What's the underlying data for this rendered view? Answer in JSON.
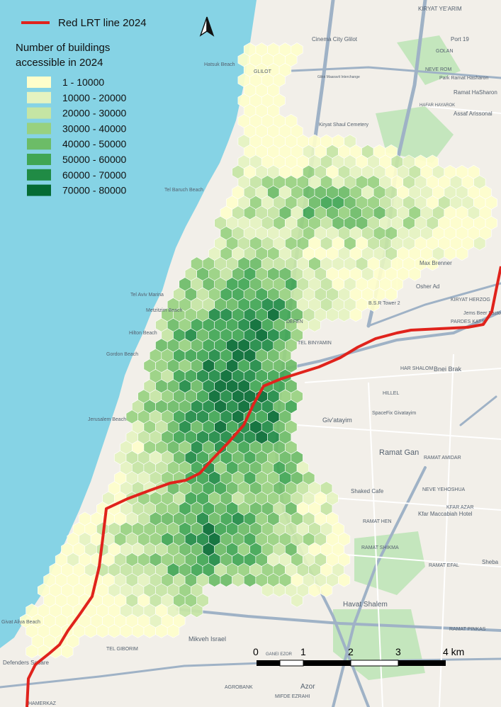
{
  "legend": {
    "line_label": "Red LRT line 2024",
    "title_line1": "Number of buildings",
    "title_line2": "accessible in 2024",
    "classes": [
      {
        "label": "1 - 10000",
        "color": "#fefecb"
      },
      {
        "label": "10000 - 20000",
        "color": "#e5f3c0"
      },
      {
        "label": "20000 - 30000",
        "color": "#c5e5a4"
      },
      {
        "label": "30000 - 40000",
        "color": "#98d180"
      },
      {
        "label": "40000 - 50000",
        "color": "#6cbc67"
      },
      {
        "label": "50000 - 60000",
        "color": "#40a654"
      },
      {
        "label": "60000 - 70000",
        "color": "#208b45"
      },
      {
        "label": "70000 - 80000",
        "color": "#056b33"
      }
    ]
  },
  "colors": {
    "sea": "#86d3e5",
    "land": "#f2efe9",
    "lrt_line": "#e0231c",
    "highway": "#9fb2c6",
    "park": "#c4e6bd"
  },
  "north_arrow": {
    "icon": "north-arrow-icon"
  },
  "scale_bar": {
    "ticks": [
      "0",
      "1",
      "2",
      "3",
      "4 km"
    ]
  },
  "place_labels": [
    {
      "key": "kiryat_yearim",
      "text": "KIRYAT YE'ARIM"
    },
    {
      "key": "cinema_city",
      "text": "Cinema City Glilot"
    },
    {
      "key": "port19",
      "text": "Port 19"
    },
    {
      "key": "golan",
      "text": "GOLAN"
    },
    {
      "key": "neve_rom",
      "text": "NEVE ROM"
    },
    {
      "key": "hatsuk_beach",
      "text": "Hatsuk Beach"
    },
    {
      "key": "glilot",
      "text": "GLILOT"
    },
    {
      "key": "glilot_interchange",
      "text": "Glilot Maaravit Interchange"
    },
    {
      "key": "park_ramat_hasharon",
      "text": "Park Ramat Hasharon"
    },
    {
      "key": "ramat_hasharon",
      "text": "Ramat HaSharon"
    },
    {
      "key": "hadar",
      "text": "HAFAR HAYAROK"
    },
    {
      "key": "assaf",
      "text": "Assaf Arissonal"
    },
    {
      "key": "kiryat_shaul",
      "text": "Kiryat Shaul Cemetery"
    },
    {
      "key": "tel_baruch",
      "text": "Tel Baruch Beach"
    },
    {
      "key": "max_brenner",
      "text": "Max Brenner"
    },
    {
      "key": "osher_ad",
      "text": "Osher Ad"
    },
    {
      "key": "kiryat_herzog",
      "text": "KIRYAT HERZOG"
    },
    {
      "key": "jems",
      "text": "Jems Beer Factory"
    },
    {
      "key": "bsr",
      "text": "B.S.R Tower 2"
    },
    {
      "key": "pardes_katz",
      "text": "PARDES KATS"
    },
    {
      "key": "tel_aviv_marina",
      "text": "Tel Aviv Marina"
    },
    {
      "key": "metzitzim",
      "text": "Metzitzim Beach"
    },
    {
      "key": "hilton",
      "text": "Hilton Beach"
    },
    {
      "key": "gordon_beach",
      "text": "Gordon Beach"
    },
    {
      "key": "bnei_brak",
      "text": "Bnei Brak"
    },
    {
      "key": "har_shalom",
      "text": "HAR SHALOM"
    },
    {
      "key": "tel_binyamin",
      "text": "TEL BINYAMIN"
    },
    {
      "key": "hillel",
      "text": "HILLEL"
    },
    {
      "key": "givatayim",
      "text": "Giv'atayim"
    },
    {
      "key": "spacefix",
      "text": "SpaceFix Givatayim"
    },
    {
      "key": "ramat_gan",
      "text": "Ramat Gan"
    },
    {
      "key": "ramat_amidar",
      "text": "RAMAT AMIDAR"
    },
    {
      "key": "shaked",
      "text": "Shaked Cafe"
    },
    {
      "key": "kfar_azar",
      "text": "KFAR AZAR"
    },
    {
      "key": "neve_yehoshua",
      "text": "NEVE YEHOSHUA"
    },
    {
      "key": "ramat_hen",
      "text": "RAMAT HEN"
    },
    {
      "key": "ramat_shikma",
      "text": "RAMAT SHIKMA"
    },
    {
      "key": "ramat_efal",
      "text": "RAMAT EFAL"
    },
    {
      "key": "sheba",
      "text": "Sheba"
    },
    {
      "key": "havat_shalem",
      "text": "Havat Shalem"
    },
    {
      "key": "mikveh_israel",
      "text": "Mikveh Israel"
    },
    {
      "key": "tel_giborim",
      "text": "TEL GIBORIM"
    },
    {
      "key": "agrobank",
      "text": "AGROBANK"
    },
    {
      "key": "mifde_ezrahi",
      "text": "MIFDE EZRAHI"
    },
    {
      "key": "hamerkaz",
      "text": "HAMERKAZ"
    },
    {
      "key": "azor",
      "text": "Azor"
    },
    {
      "key": "ganei_ezor",
      "text": "GANEI EZOR"
    },
    {
      "key": "defenders_square",
      "text": "Defenders Square"
    },
    {
      "key": "givat_aliya",
      "text": "Givat Aliya Beach"
    },
    {
      "key": "ramat_pinkas",
      "text": "RAMAT PINKAS"
    },
    {
      "key": "defen",
      "text": "DEFEN"
    },
    {
      "key": "kfar_maccabiah",
      "text": "Kfar Maccabiah Hotel"
    },
    {
      "key": "jerusalem_beach",
      "text": "Jerusalem Beach"
    }
  ]
}
